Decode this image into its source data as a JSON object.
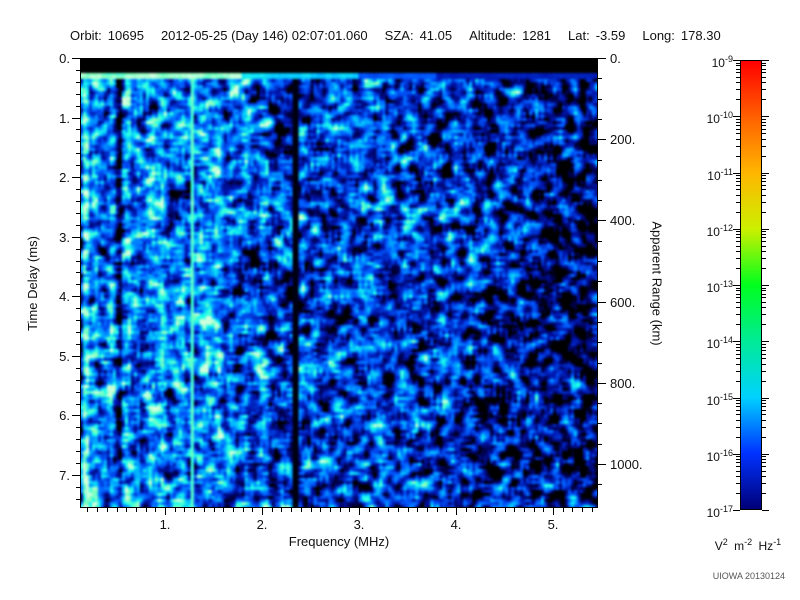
{
  "header": {
    "fields": [
      {
        "label": "Orbit:",
        "value": "10695"
      },
      {
        "label": "",
        "value": "2012-05-25 (Day 146) 02:07:01.060"
      },
      {
        "label": "SZA:",
        "value": "41.05"
      },
      {
        "label": "Altitude:",
        "value": "1281"
      },
      {
        "label": "Lat:",
        "value": "-3.59"
      },
      {
        "label": "Long:",
        "value": "178.30"
      }
    ]
  },
  "chart_data": {
    "type": "heatmap",
    "title": "",
    "xlabel": "Frequency (MHz)",
    "ylabel_left": "Time Delay (ms)",
    "ylabel_right": "Apparent Range (km)",
    "x_range_mhz": [
      0.12,
      5.46
    ],
    "y_range_ms": [
      0,
      7.56
    ],
    "right_axis_range_km": [
      0,
      1108
    ],
    "x_axis": {
      "major_values": [
        1,
        2,
        3,
        4,
        5
      ],
      "major_labels": [
        "1.",
        "2.",
        "3.",
        "4.",
        "5."
      ],
      "minor_step_mhz": 0.1
    },
    "y_axis": {
      "major_values": [
        0,
        1,
        2,
        3,
        4,
        5,
        6,
        7
      ],
      "major_labels": [
        "0.",
        "1.",
        "2.",
        "3.",
        "4.",
        "5.",
        "6.",
        "7."
      ],
      "minor_step_ms": 0.2
    },
    "right_axis": {
      "major_values": [
        0,
        200,
        400,
        600,
        800,
        1000
      ],
      "major_labels": [
        "0.",
        "200.",
        "400.",
        "600.",
        "800.",
        "1000."
      ],
      "minor_step_km": 50
    },
    "colorbar": {
      "scale": "log",
      "base": "10",
      "exponent_max": -9,
      "exponent_min": -17,
      "tick_exponents": [
        -9,
        -10,
        -11,
        -12,
        -13,
        -14,
        -15,
        -16,
        -17
      ],
      "stops": [
        {
          "exp": -9,
          "color": "#ff0000"
        },
        {
          "exp": -10,
          "color": "#ff6000"
        },
        {
          "exp": -11,
          "color": "#ffb600"
        },
        {
          "exp": -12,
          "color": "#ccf000"
        },
        {
          "exp": -13,
          "color": "#00ff1e"
        },
        {
          "exp": -14,
          "color": "#00eb96"
        },
        {
          "exp": -15,
          "color": "#00d2ff"
        },
        {
          "exp": -16,
          "color": "#0032ff"
        },
        {
          "exp": -17,
          "color": "#000078"
        }
      ],
      "unit": {
        "b1": "V",
        "e1": "2",
        "b2": "m",
        "e2": "-2",
        "b3": "Hz",
        "e3": "-1"
      }
    },
    "features": [
      {
        "name": "transmit-blank-band",
        "desc": "solid black band from 0 to ~0.27 ms across all frequencies"
      },
      {
        "name": "surface-echo-line",
        "desc": "bright cyan-green horizontal line at ~0.3 ms, fading above ~3.8 MHz"
      },
      {
        "name": "low-freq-striping",
        "desc": "strong alternating bright/dark vertical stripes below ~0.6 MHz"
      },
      {
        "name": "narrowband-line",
        "desc": "bright cyan vertical line at ~1.29 MHz spanning all delays"
      },
      {
        "name": "quiet-band",
        "desc": "black vertical band at ~2.35 MHz"
      },
      {
        "name": "noise-falloff",
        "desc": "diffuse blue noise dimming into black patches above ~3.5 MHz"
      }
    ],
    "noise_seed": 20130124,
    "value_floor_color": "#000000",
    "grid": false,
    "legend_position": "right-colorbar"
  },
  "credit": "UIOWA 20130124"
}
